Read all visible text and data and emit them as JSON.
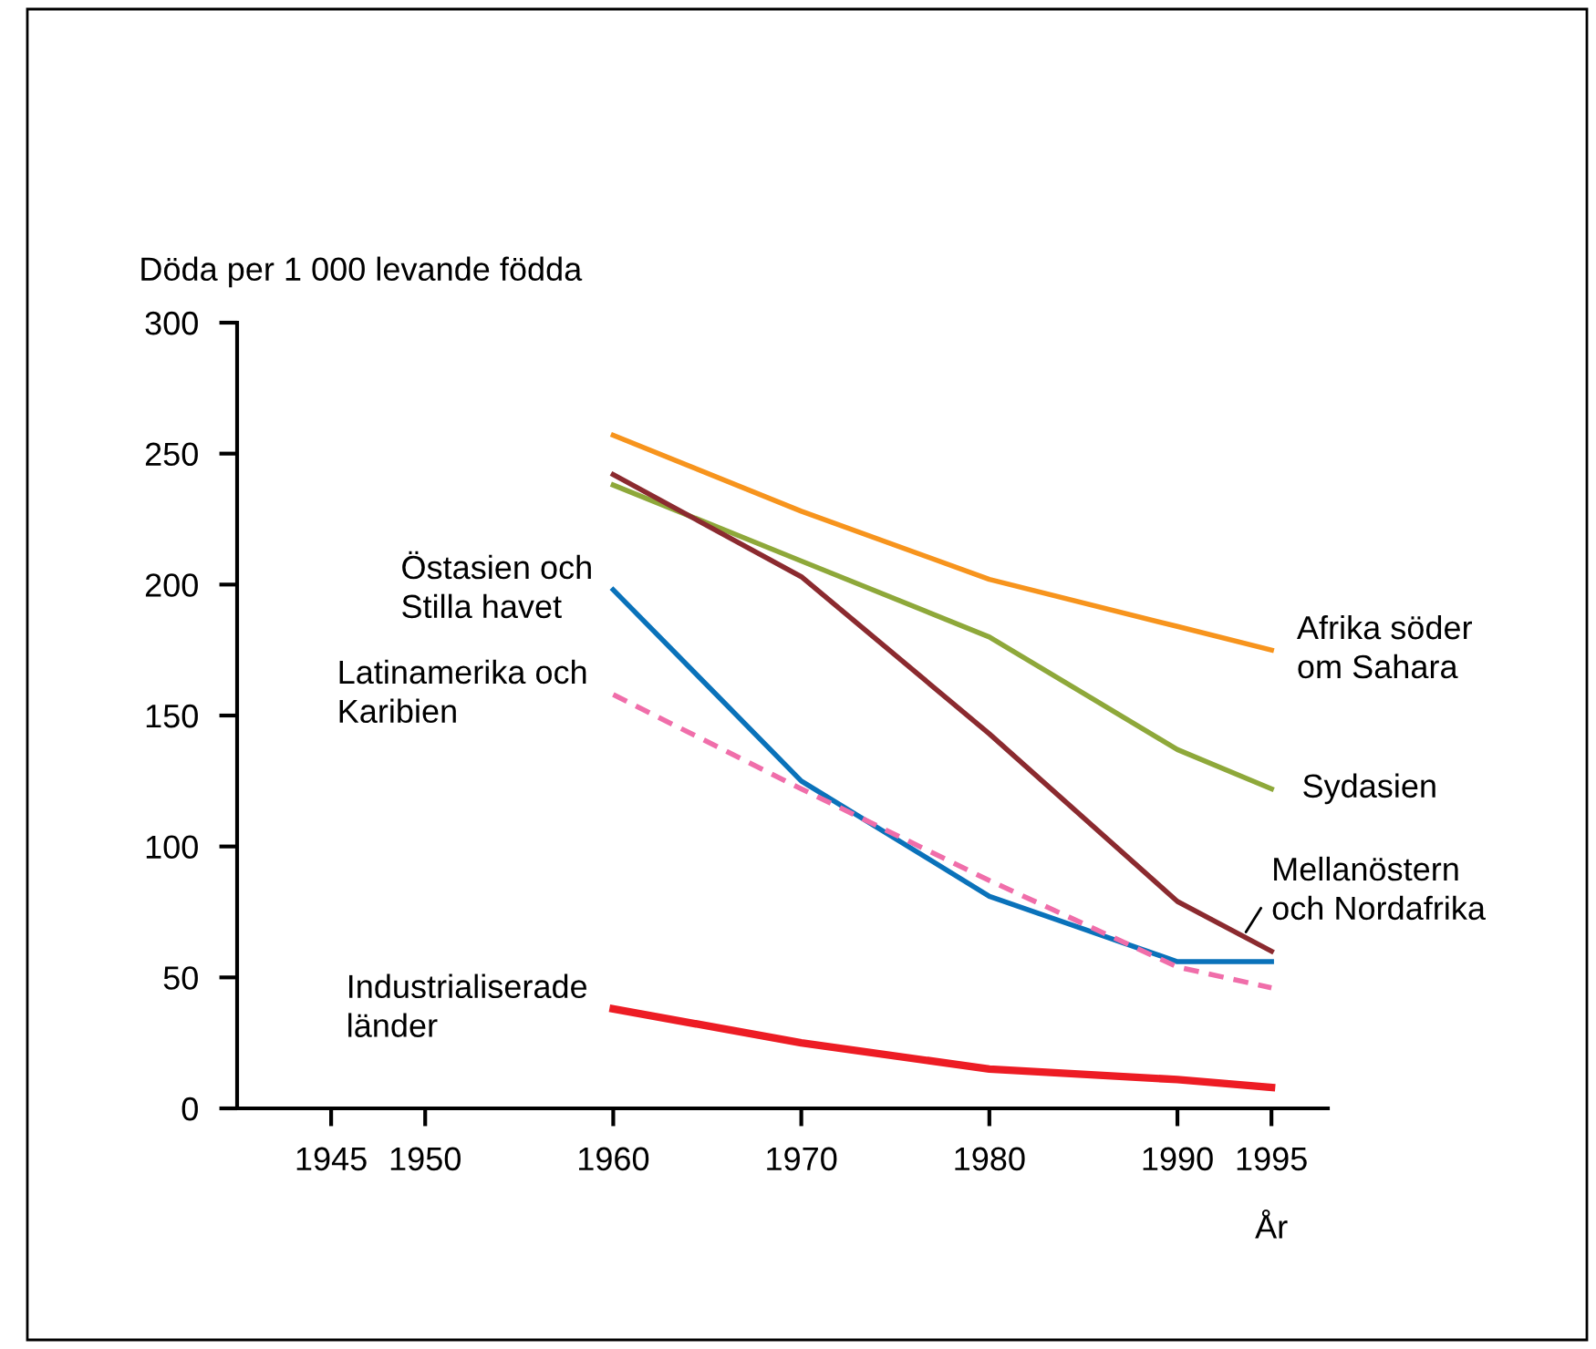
{
  "chart_data": {
    "type": "line",
    "ylabel": "Döda per 1 000 levande födda",
    "xlabel": "År",
    "xlim": [
      1940,
      1998
    ],
    "xticks": [
      1945,
      1950,
      1960,
      1970,
      1980,
      1990,
      1995
    ],
    "ylim": [
      0,
      300
    ],
    "yticks": [
      0,
      50,
      100,
      150,
      200,
      250,
      300
    ],
    "grid": false,
    "legend": false,
    "marker": "none",
    "x": [
      1960,
      1970,
      1980,
      1990,
      1995
    ],
    "series": [
      {
        "name": "Afrika söder om Sahara",
        "color": "#f7941d",
        "values": [
          257,
          228,
          202,
          184,
          175
        ]
      },
      {
        "name": "Sydasien",
        "color": "#8ea83a",
        "values": [
          238,
          209,
          180,
          137,
          122
        ]
      },
      {
        "name": "Mellanöstern och Nordafrika",
        "color": "#8b2a2f",
        "values": [
          242,
          203,
          143,
          79,
          60
        ]
      },
      {
        "name": "Östasien och Stilla havet",
        "color": "#0a72ba",
        "values": [
          198,
          125,
          81,
          56,
          56
        ]
      },
      {
        "name": "Latinamerika och Karibien",
        "color": "#f06eaa",
        "values": [
          158,
          122,
          87,
          54,
          46
        ],
        "line_style": "dashed"
      },
      {
        "name": "Industrialiserade länder",
        "color": "#ed1c24",
        "values": [
          38,
          25,
          15,
          11,
          8
        ]
      }
    ]
  }
}
